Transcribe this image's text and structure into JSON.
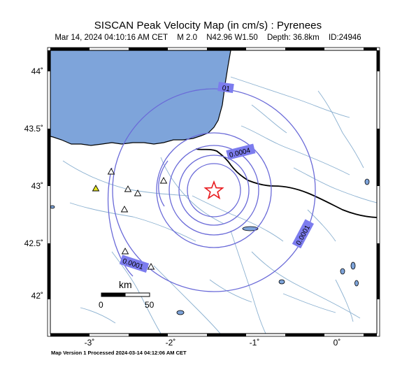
{
  "header": {
    "title": "SISCAN Peak Velocity Map (in cm/s) : Pyrenees",
    "date": "Mar 14, 2024 04:10:16 AM CET",
    "magnitude": "M 2.0",
    "location": "N42.96 W1.50",
    "depth": "Depth: 36.8km",
    "event_id": "ID:24946"
  },
  "axes": {
    "lat_ticks": [
      "44˚",
      "43.5˚",
      "43˚",
      "42.5˚",
      "42˚"
    ],
    "lon_ticks": [
      "-3˚",
      "-2˚",
      "-1˚",
      "0˚"
    ]
  },
  "contours": {
    "labels": [
      "01",
      "0.0004",
      "0.0001",
      "0.0001"
    ]
  },
  "scale_bar": {
    "unit": "km",
    "start": "0",
    "end": "50"
  },
  "colors": {
    "sea": "#7ea4da",
    "contour": "#6a6ad8",
    "label_fill": "#7c7cee",
    "epicenter": "#e8181c",
    "station_fill_yellow": "#e6e620",
    "river": "#8ab0d0"
  },
  "footer": {
    "text": "Map Version 1 Processed 2024-03-14 04:12:06 AM CET"
  }
}
